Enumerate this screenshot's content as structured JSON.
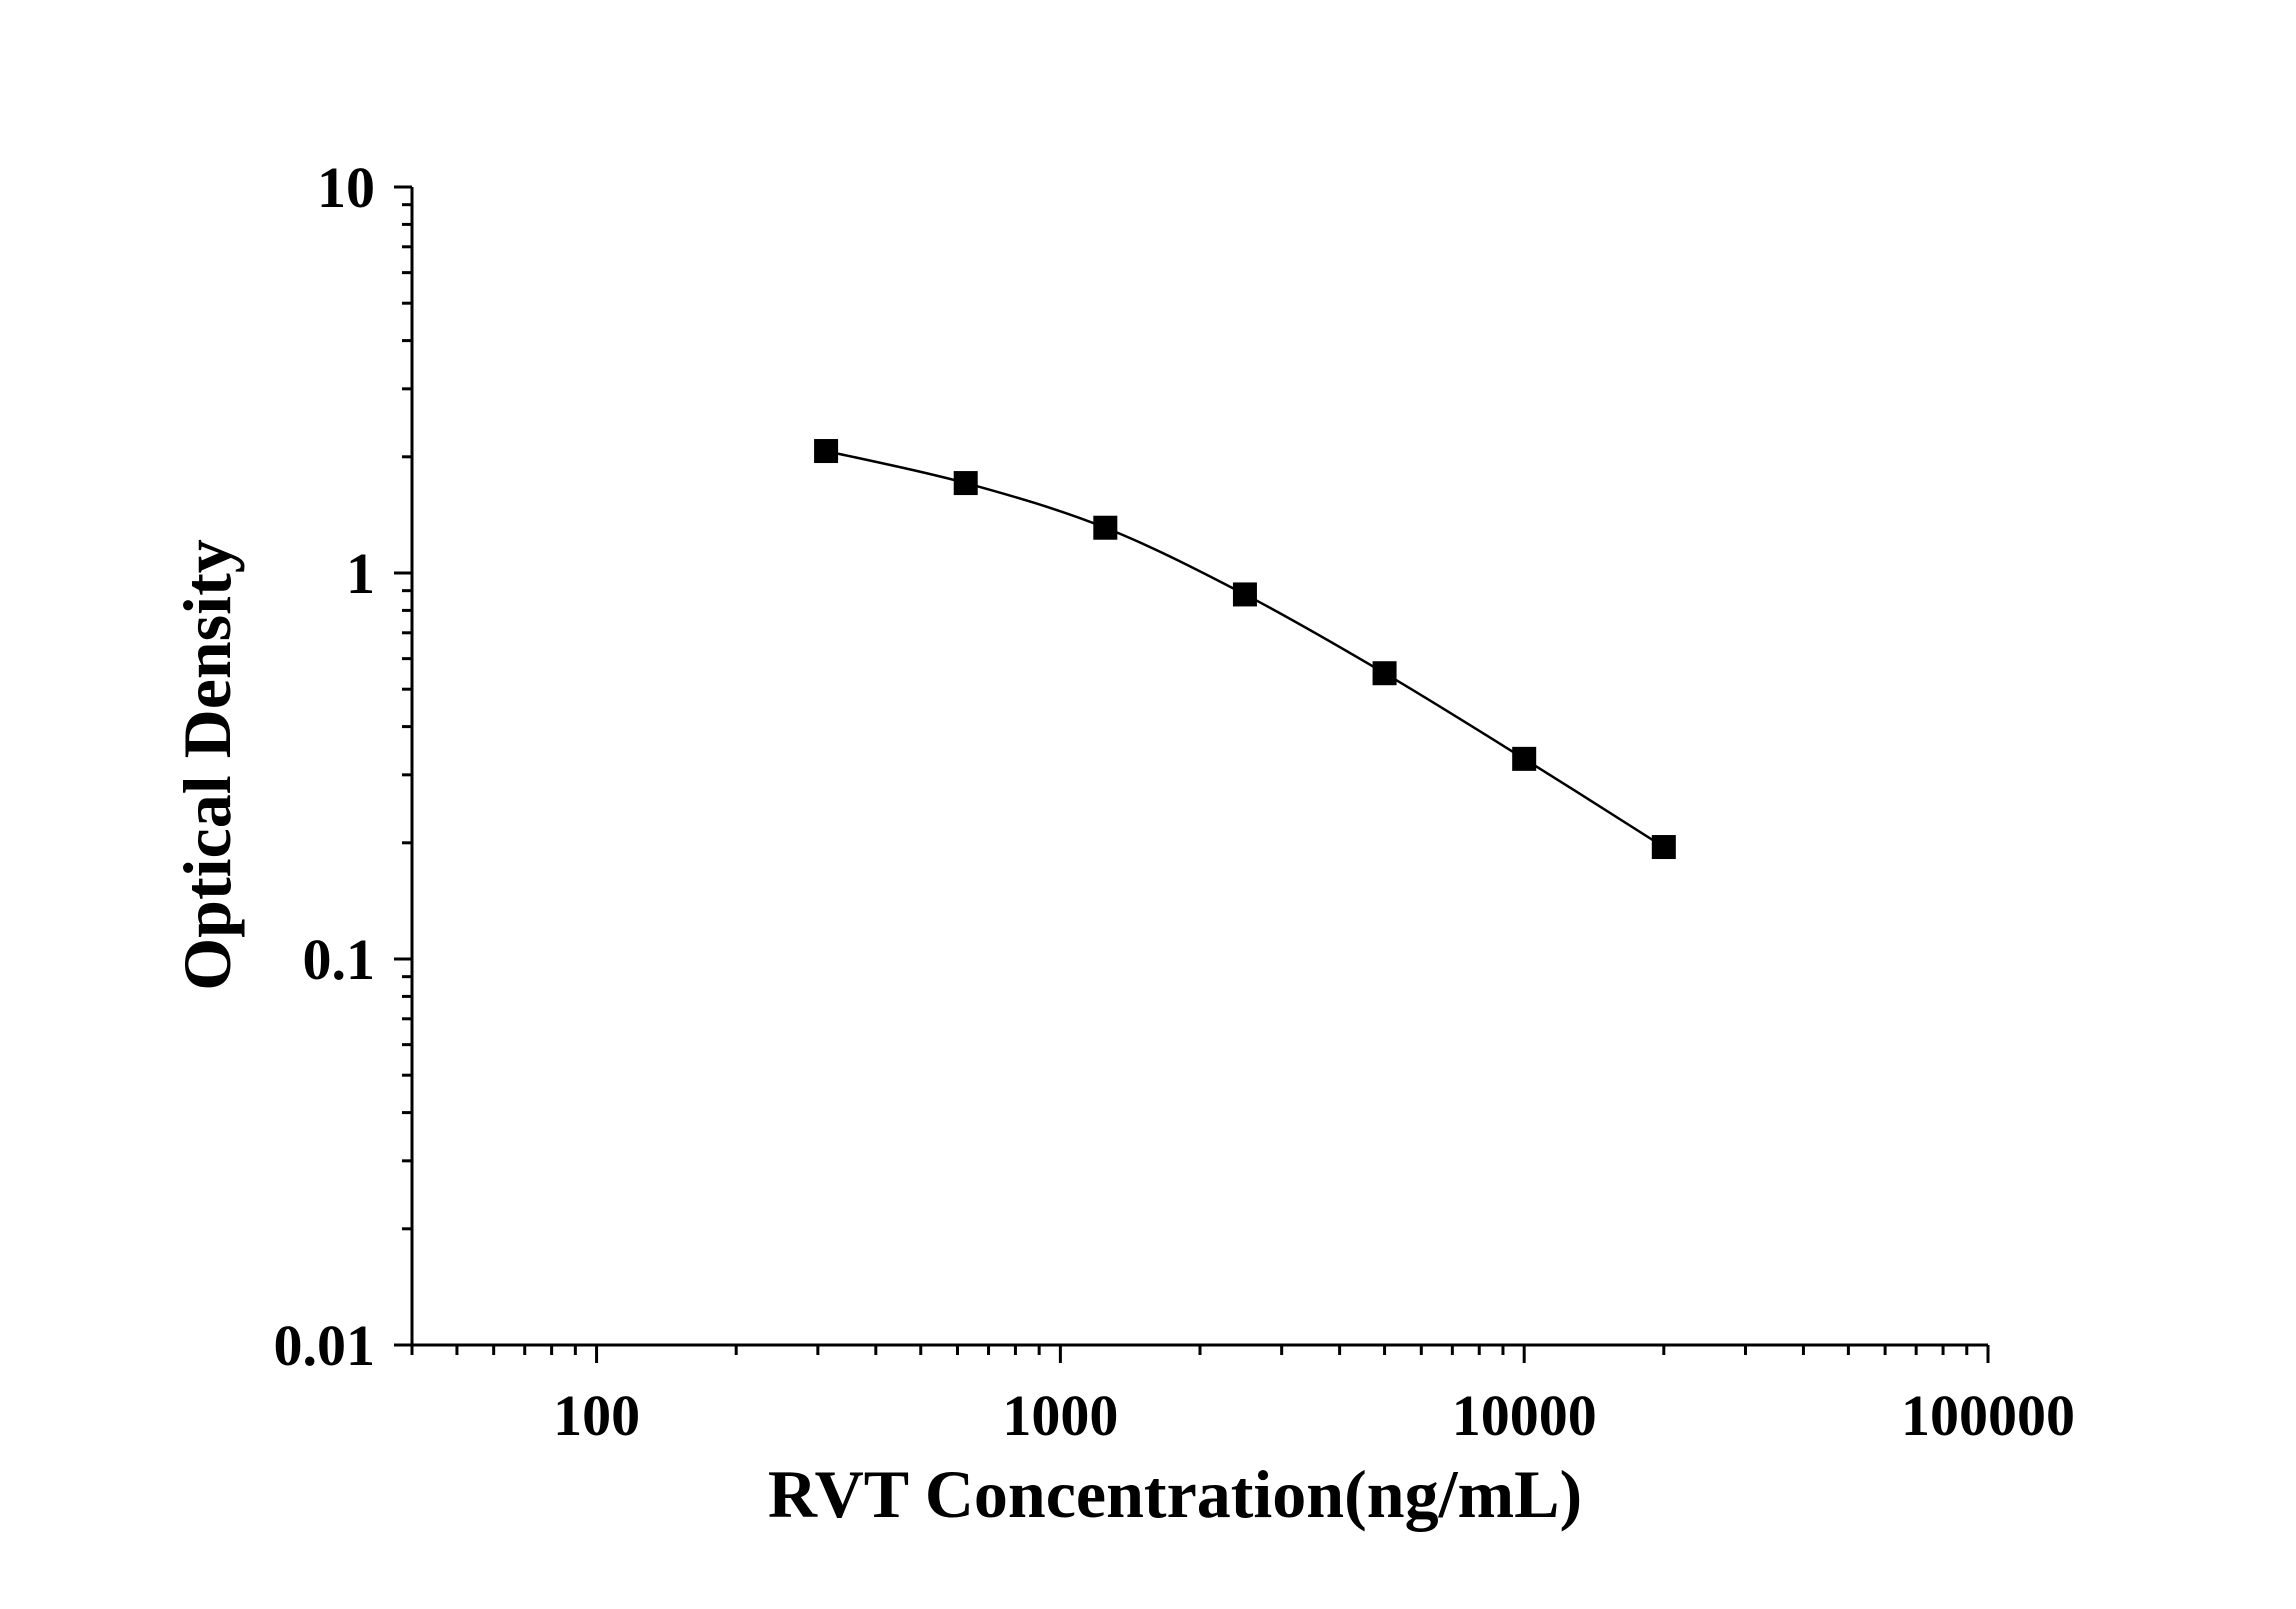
{
  "chart_data": {
    "type": "scatter",
    "title": "",
    "xlabel": "RVT Concentration(ng/mL)",
    "ylabel": "Optical Density",
    "x_scale": "log",
    "y_scale": "log",
    "xlim": [
      40,
      100000
    ],
    "ylim": [
      0.01,
      10
    ],
    "x_ticks": [
      "100",
      "1000",
      "10000",
      "100000"
    ],
    "y_ticks": [
      "0.01",
      "0.1",
      "1",
      "10"
    ],
    "grid": false,
    "legend": "none",
    "marker": "square",
    "line": "smooth",
    "series": [
      {
        "x": [
          312.5,
          625,
          1250,
          2500,
          5000,
          10000,
          20000
        ],
        "y": [
          2.07,
          1.71,
          1.31,
          0.88,
          0.55,
          0.33,
          0.195
        ]
      }
    ],
    "colors": {
      "line": "#000000",
      "marker": "#000000",
      "axis": "#000000"
    }
  }
}
